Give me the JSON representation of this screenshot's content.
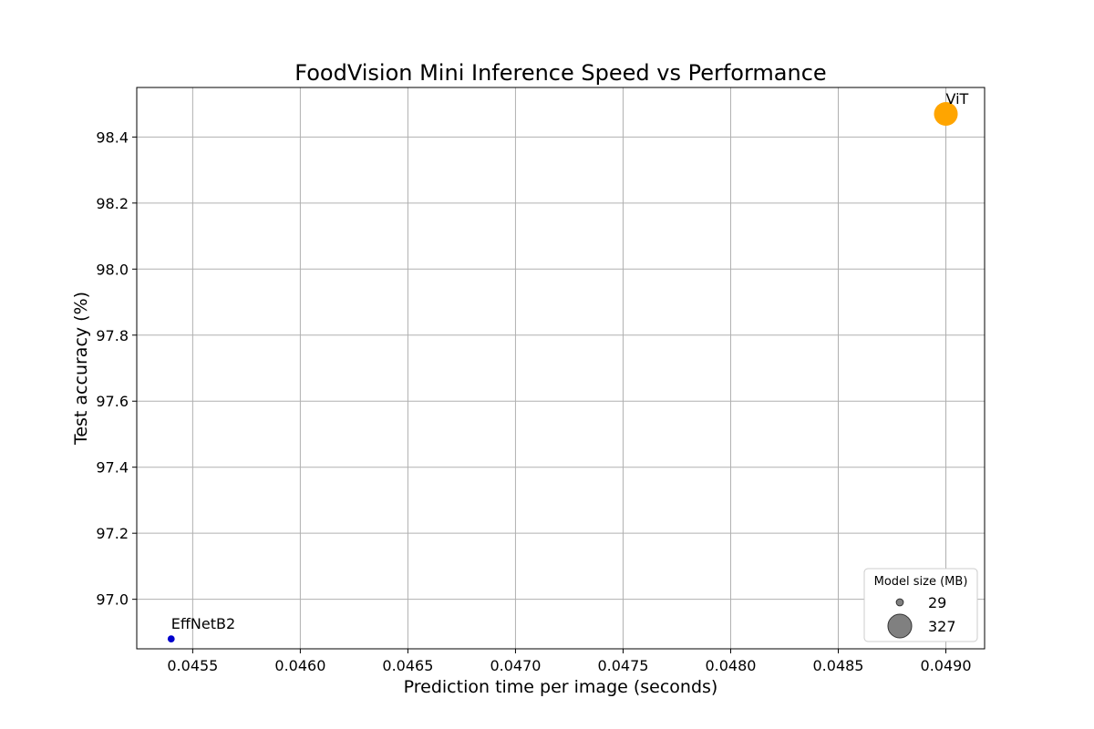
{
  "chart_data": {
    "type": "scatter",
    "title": "FoodVision Mini Inference Speed vs Performance",
    "xlabel": "Prediction time per image (seconds)",
    "ylabel": "Test accuracy (%)",
    "xlim": [
      0.04524,
      0.04918
    ],
    "ylim": [
      96.85,
      98.55
    ],
    "xticks": [
      0.0455,
      0.046,
      0.0465,
      0.047,
      0.0475,
      0.048,
      0.0485,
      0.049
    ],
    "xtick_labels": [
      "0.0455",
      "0.0460",
      "0.0465",
      "0.0470",
      "0.0475",
      "0.0480",
      "0.0485",
      "0.0490"
    ],
    "yticks": [
      97.0,
      97.2,
      97.4,
      97.6,
      97.8,
      98.0,
      98.2,
      98.4
    ],
    "ytick_labels": [
      "97.0",
      "97.2",
      "97.4",
      "97.6",
      "97.8",
      "98.0",
      "98.2",
      "98.4"
    ],
    "grid": true,
    "points": [
      {
        "label": "EffNetB2",
        "x": 0.0454,
        "y": 96.88,
        "model_size_mb": 29,
        "color": "#0000cc"
      },
      {
        "label": "ViT",
        "x": 0.049,
        "y": 98.47,
        "model_size_mb": 327,
        "color": "#ffa500"
      }
    ],
    "legend": {
      "title": "Model size (MB)",
      "position": "lower-right",
      "entries": [
        {
          "label": "29",
          "size_mb": 29
        },
        {
          "label": "327",
          "size_mb": 327
        }
      ],
      "marker_color": "#808080"
    }
  }
}
